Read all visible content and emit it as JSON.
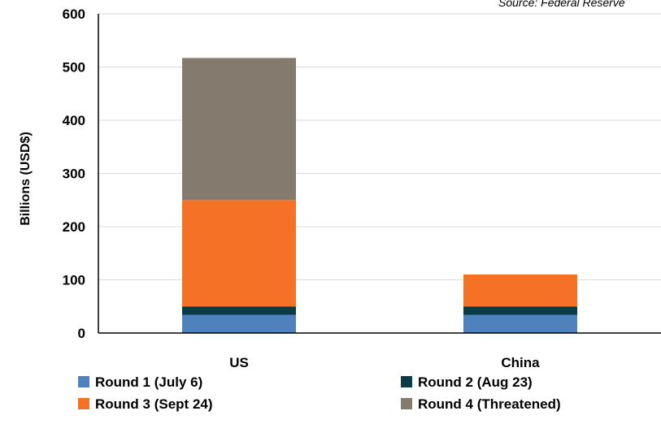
{
  "chart_data": {
    "type": "bar",
    "stacked": true,
    "source": "Source: Federal Reserve",
    "ylabel": "Billions  (USD$)",
    "xlabel": "",
    "ylim": [
      0,
      600
    ],
    "yticks": [
      0,
      100,
      200,
      300,
      400,
      500,
      600
    ],
    "grid": true,
    "legend_position": "bottom",
    "categories": [
      "US",
      "China"
    ],
    "series": [
      {
        "name": "Round 1 (July 6)",
        "color": "#4f81bd",
        "values": [
          34,
          34
        ]
      },
      {
        "name": "Round 2 (Aug 23)",
        "color": "#0b3b44",
        "values": [
          16,
          16
        ]
      },
      {
        "name": "Round 3 (Sept 24)",
        "color": "#f47126",
        "values": [
          200,
          60
        ]
      },
      {
        "name": "Round 4 (Threatened)",
        "color": "#847a6e",
        "values": [
          267,
          0
        ]
      }
    ]
  }
}
